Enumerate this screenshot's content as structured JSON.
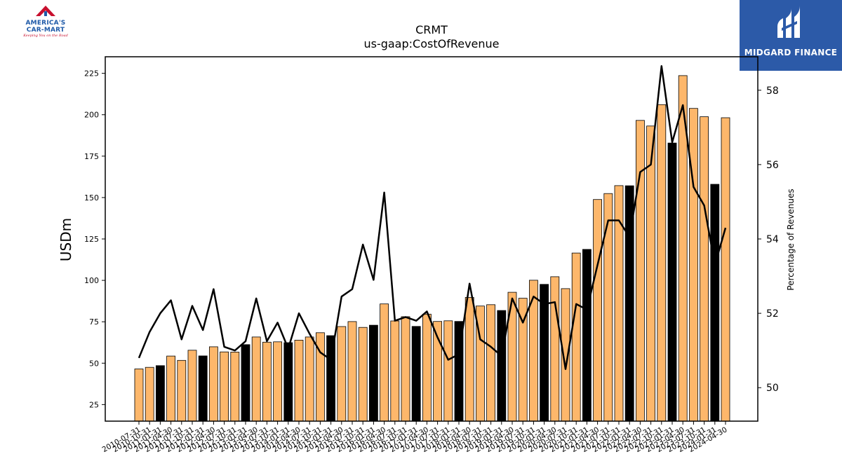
{
  "logos": {
    "left_brand": "AMERICA'S CAR-MART",
    "left_line1": "AMERICA'S",
    "left_line2": "CAR-MART",
    "left_tagline": "Keeping You on the Road",
    "right_brand": "MIDGARD FINANCE"
  },
  "chart_data": {
    "type": "bar",
    "title": "CRMT",
    "subtitle": "us-gaap:CostOfRevenue",
    "ylabel": "USDm",
    "y2label": "Percentage of Revenues",
    "ylim": [
      15,
      235
    ],
    "y2lim": [
      49.1,
      58.9
    ],
    "yticks": [
      25,
      50,
      75,
      100,
      125,
      150,
      175,
      200,
      225
    ],
    "y2ticks": [
      50,
      52,
      54,
      56,
      58
    ],
    "grid": false,
    "categories": [
      "2010-07-31",
      "2010-10-31",
      "2011-01-31",
      "2011-04-30",
      "2011-07-31",
      "2011-10-31",
      "2012-01-31",
      "2012-04-30",
      "2012-07-31",
      "2012-10-31",
      "2013-01-31",
      "2013-04-30",
      "2013-07-31",
      "2013-10-31",
      "2014-01-31",
      "2014-04-30",
      "2014-07-31",
      "2014-10-31",
      "2015-01-31",
      "2015-04-30",
      "2015-07-31",
      "2015-10-31",
      "2016-01-31",
      "2016-04-30",
      "2016-07-31",
      "2016-10-31",
      "2017-01-31",
      "2017-04-30",
      "2017-07-31",
      "2017-10-31",
      "2018-01-31",
      "2018-04-30",
      "2018-07-31",
      "2018-10-31",
      "2019-01-31",
      "2019-04-30",
      "2019-07-31",
      "2019-10-31",
      "2020-01-31",
      "2020-04-30",
      "2020-07-31",
      "2020-10-31",
      "2021-01-31",
      "2021-04-30",
      "2021-07-31",
      "2021-10-31",
      "2022-01-31",
      "2022-04-30",
      "2022-07-31",
      "2022-10-31",
      "2023-01-31",
      "2023-04-30",
      "2023-07-31",
      "2023-10-31",
      "2024-01-31",
      "2024-04-30"
    ],
    "xticks": [
      "2010-07-31",
      "2010-10-31",
      "2011-01-31",
      "2011-04-30",
      "2011-07-31",
      "2011-10-31",
      "2012-01-31",
      "2012-04-30",
      "2012-07-31",
      "2012-10-31",
      "2013-01-31",
      "2013-04-30",
      "2013-07-31",
      "2013-10-31",
      "2014-01-31",
      "2014-04-30",
      "2014-07-31",
      "2014-10-31",
      "2015-01-31",
      "2015-04-30",
      "2015-07-31",
      "2015-10-31",
      "2016-01-31",
      "2016-04-30",
      "2016-07-31",
      "2016-10-31",
      "2017-01-31",
      "2017-04-30",
      "2017-07-31",
      "2017-10-31",
      "2018-01-31",
      "2018-04-30",
      "2018-07-31",
      "2018-10-31",
      "2019-01-31",
      "2019-04-30",
      "2019-07-31",
      "2019-10-31",
      "2020-01-31",
      "2020-04-30",
      "2020-07-31",
      "2020-10-31",
      "2021-01-31",
      "2021-04-30",
      "2021-07-31",
      "2021-10-31",
      "2022-01-31",
      "2022-04-30",
      "2022-07-31",
      "2022-10-31",
      "2023-01-31",
      "2023-04-30",
      "2023-07-31",
      "2023-10-31",
      "2024-01-31",
      "2024-04-30"
    ],
    "series": [
      {
        "type": "bar",
        "values": [
          46.5,
          47.5,
          48.5,
          54.3,
          51.7,
          57.8,
          54.4,
          59.9,
          56.8,
          56.7,
          61.2,
          65.8,
          62.7,
          62.9,
          62.4,
          63.9,
          65.8,
          68.4,
          66.6,
          72.1,
          75.1,
          71.6,
          72.9,
          85.8,
          75.5,
          78.1,
          72.2,
          79.6,
          75.2,
          75.6,
          75.2,
          89.7,
          84.5,
          85.3,
          81.8,
          92.8,
          89.2,
          100.1,
          97.6,
          102.2,
          95.0,
          116.5,
          118.7,
          148.8,
          152.4,
          157.2,
          157.1,
          196.6,
          193.2,
          206.1,
          182.9,
          223.6,
          203.8,
          198.8,
          158.0,
          198.2
        ],
        "highlight": [
          false,
          false,
          true,
          false,
          false,
          false,
          true,
          false,
          false,
          false,
          true,
          false,
          false,
          false,
          true,
          false,
          false,
          false,
          true,
          false,
          false,
          false,
          true,
          false,
          false,
          false,
          true,
          false,
          false,
          false,
          true,
          false,
          false,
          false,
          true,
          false,
          false,
          false,
          true,
          false,
          false,
          false,
          true,
          false,
          false,
          false,
          true,
          false,
          false,
          false,
          true,
          false,
          false,
          false,
          true,
          false
        ]
      },
      {
        "type": "line",
        "axis": "right",
        "values": [
          50.8,
          51.5,
          52.0,
          52.35,
          51.3,
          52.2,
          51.55,
          52.65,
          51.1,
          51.0,
          51.25,
          52.4,
          51.25,
          51.75,
          51.05,
          52.0,
          51.45,
          50.95,
          50.75,
          52.45,
          52.65,
          53.85,
          52.9,
          55.25,
          51.8,
          51.9,
          51.8,
          52.05,
          51.35,
          50.75,
          50.9,
          52.8,
          51.3,
          51.1,
          50.85,
          52.4,
          51.75,
          52.45,
          52.25,
          52.3,
          50.5,
          52.25,
          52.1,
          53.3,
          54.5,
          54.5,
          54.05,
          55.8,
          56.0,
          58.65,
          56.6,
          57.6,
          55.4,
          54.9,
          53.3,
          54.3
        ]
      }
    ],
    "colors": {
      "bar": "#fdb76b",
      "bar_highlight": "#000000",
      "bar_edge": "#000000",
      "line": "#000000"
    }
  }
}
